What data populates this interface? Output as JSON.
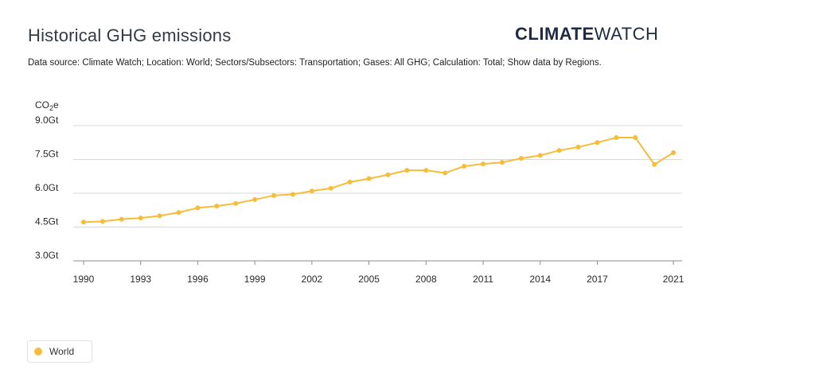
{
  "header": {
    "title": "Historical GHG emissions",
    "brand_bold": "CLIMATE",
    "brand_light": "WATCH",
    "data_source": "Data source: Climate Watch; Location: World; Sectors/Subsectors: Transportation; Gases: All GHG; Calculation: Total; Show data by Regions."
  },
  "colors": {
    "series": "#f6bd3b",
    "grid": "#d9d9d9",
    "axis": "#8c8c8c"
  },
  "chart_data": {
    "type": "line",
    "ylabel": "CO2e",
    "ylabel_main": "CO",
    "ylabel_sub": "2",
    "ylabel_suffix": "e",
    "ylim": [
      3.0,
      9.0
    ],
    "y_ticks": [
      3.0,
      4.5,
      6.0,
      7.5,
      9.0
    ],
    "y_tick_labels": [
      "3.0Gt",
      "4.5Gt",
      "6.0Gt",
      "7.5Gt",
      "9.0Gt"
    ],
    "x_ticks": [
      1990,
      1993,
      1996,
      1999,
      2002,
      2005,
      2008,
      2011,
      2014,
      2017,
      2021
    ],
    "x_tick_labels": [
      "1990",
      "1993",
      "1996",
      "1999",
      "2002",
      "2005",
      "2008",
      "2011",
      "2014",
      "2017",
      "2021"
    ],
    "grid": true,
    "legend_position": "bottom-left",
    "series": [
      {
        "name": "World",
        "x": [
          1990,
          1991,
          1992,
          1993,
          1994,
          1995,
          1996,
          1997,
          1998,
          1999,
          2000,
          2001,
          2002,
          2003,
          2004,
          2005,
          2006,
          2007,
          2008,
          2009,
          2010,
          2011,
          2012,
          2013,
          2014,
          2015,
          2016,
          2017,
          2018,
          2019,
          2020,
          2021
        ],
        "values": [
          4.72,
          4.75,
          4.85,
          4.9,
          5.0,
          5.15,
          5.35,
          5.43,
          5.55,
          5.72,
          5.9,
          5.95,
          6.1,
          6.22,
          6.5,
          6.65,
          6.82,
          7.02,
          7.02,
          6.9,
          7.2,
          7.3,
          7.37,
          7.55,
          7.68,
          7.9,
          8.05,
          8.25,
          8.47,
          8.47,
          7.28,
          7.8
        ]
      }
    ]
  }
}
